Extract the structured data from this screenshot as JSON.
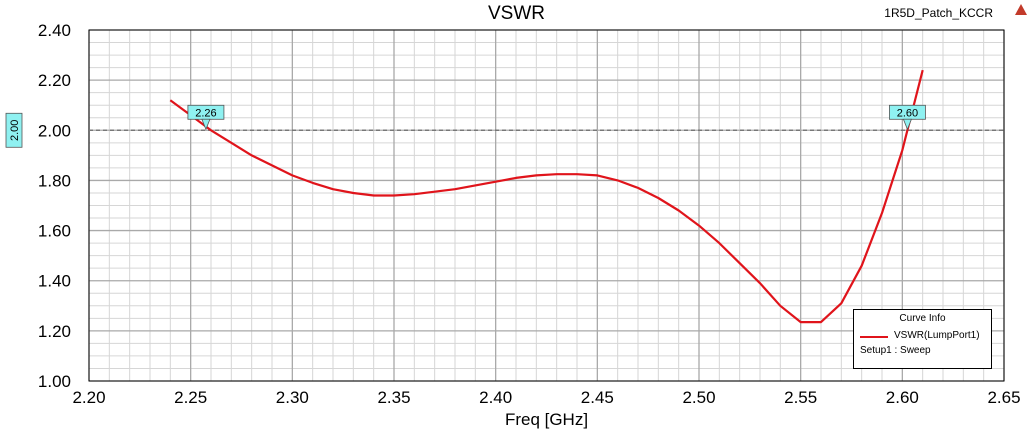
{
  "project_name": "1R5D_Patch_KCCR",
  "corner_icon": "warning-triangle-icon",
  "chart_data": {
    "type": "line",
    "title": "VSWR",
    "xlabel": "Freq [GHz]",
    "ylabel": "",
    "xlim": [
      2.2,
      2.65
    ],
    "ylim": [
      1.0,
      2.4
    ],
    "x_ticks": [
      "2.20",
      "2.25",
      "2.30",
      "2.35",
      "2.40",
      "2.45",
      "2.50",
      "2.55",
      "2.60",
      "2.65"
    ],
    "y_ticks": [
      "1.00",
      "1.20",
      "1.40",
      "1.60",
      "1.80",
      "2.00",
      "2.20",
      "2.40"
    ],
    "grid": true,
    "series": [
      {
        "name": "VSWR(LumpPort1)",
        "color": "#e0141b",
        "x": [
          2.24,
          2.25,
          2.26,
          2.27,
          2.28,
          2.29,
          2.3,
          2.31,
          2.32,
          2.33,
          2.34,
          2.35,
          2.36,
          2.37,
          2.38,
          2.39,
          2.4,
          2.41,
          2.42,
          2.43,
          2.44,
          2.45,
          2.46,
          2.47,
          2.48,
          2.49,
          2.5,
          2.51,
          2.52,
          2.53,
          2.54,
          2.55,
          2.56,
          2.57,
          2.58,
          2.59,
          2.6,
          2.61
        ],
        "y": [
          2.12,
          2.06,
          2.0,
          1.95,
          1.9,
          1.86,
          1.82,
          1.79,
          1.765,
          1.75,
          1.74,
          1.74,
          1.745,
          1.755,
          1.765,
          1.78,
          1.795,
          1.81,
          1.82,
          1.825,
          1.825,
          1.82,
          1.8,
          1.77,
          1.73,
          1.68,
          1.62,
          1.55,
          1.47,
          1.39,
          1.3,
          1.235,
          1.235,
          1.31,
          1.46,
          1.67,
          1.92,
          2.24
        ]
      }
    ],
    "reference_line": {
      "y": 2.0,
      "label": "2.00"
    },
    "markers": [
      {
        "x": 2.2575,
        "y": 2.0,
        "label": "2.26"
      },
      {
        "x": 2.6025,
        "y": 2.0,
        "label": "2.60"
      }
    ],
    "legend": {
      "placement": "bottom-right",
      "title": "Curve Info",
      "entries": [
        "VSWR(LumpPort1)"
      ],
      "subtitle": "Setup1 : Sweep"
    }
  }
}
